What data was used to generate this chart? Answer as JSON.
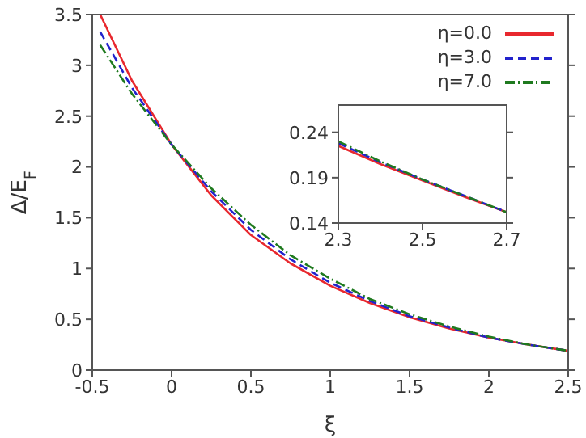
{
  "chart_data": [
    {
      "type": "line",
      "xlabel": "ξ",
      "ylabel": "Δ/E$_{F}$",
      "xlim": [
        -0.5,
        2.5
      ],
      "ylim": [
        0,
        3.5
      ],
      "xticks": [
        -0.5,
        0,
        0.5,
        1,
        1.5,
        2,
        2.5
      ],
      "yticks": [
        0,
        0.5,
        1,
        1.5,
        2,
        2.5,
        3,
        3.5
      ],
      "legend": "top right",
      "marker": "none",
      "x": [
        -0.45,
        -0.25,
        0,
        0.25,
        0.5,
        0.75,
        1,
        1.25,
        1.5,
        1.75,
        2,
        2.25,
        2.5
      ],
      "series": [
        {
          "name": "η=0.0",
          "color": "#e8282e",
          "line_style": "solid",
          "values": [
            3.5,
            2.85,
            2.22,
            1.72,
            1.33,
            1.05,
            0.83,
            0.66,
            0.52,
            0.41,
            0.32,
            0.25,
            0.19
          ]
        },
        {
          "name": "η=3.0",
          "color": "#2222cc",
          "line_style": "dashed",
          "values": [
            3.33,
            2.78,
            2.22,
            1.76,
            1.38,
            1.09,
            0.86,
            0.68,
            0.53,
            0.42,
            0.32,
            0.25,
            0.19
          ]
        },
        {
          "name": "η=7.0",
          "color": "#1f7a1f",
          "line_style": "dotted",
          "values": [
            3.2,
            2.72,
            2.22,
            1.79,
            1.43,
            1.13,
            0.9,
            0.7,
            0.55,
            0.43,
            0.33,
            0.25,
            0.19
          ]
        }
      ]
    },
    {
      "type": "line",
      "xlim": [
        2.3,
        2.7
      ],
      "ylim": [
        0.14,
        0.27
      ],
      "xticks": [
        2.3,
        2.5,
        2.7
      ],
      "yticks": [
        0.14,
        0.19,
        0.24
      ],
      "marker": "none",
      "x": [
        2.3,
        2.4,
        2.5,
        2.6,
        2.7
      ],
      "series": [
        {
          "color": "#e8282e",
          "line_style": "solid",
          "values": [
            0.225,
            0.205,
            0.187,
            0.169,
            0.152
          ]
        },
        {
          "color": "#2222cc",
          "line_style": "dashed",
          "values": [
            0.228,
            0.207,
            0.188,
            0.17,
            0.152
          ]
        },
        {
          "color": "#1f7a1f",
          "line_style": "dotted",
          "values": [
            0.23,
            0.208,
            0.188,
            0.17,
            0.152
          ]
        }
      ]
    }
  ]
}
